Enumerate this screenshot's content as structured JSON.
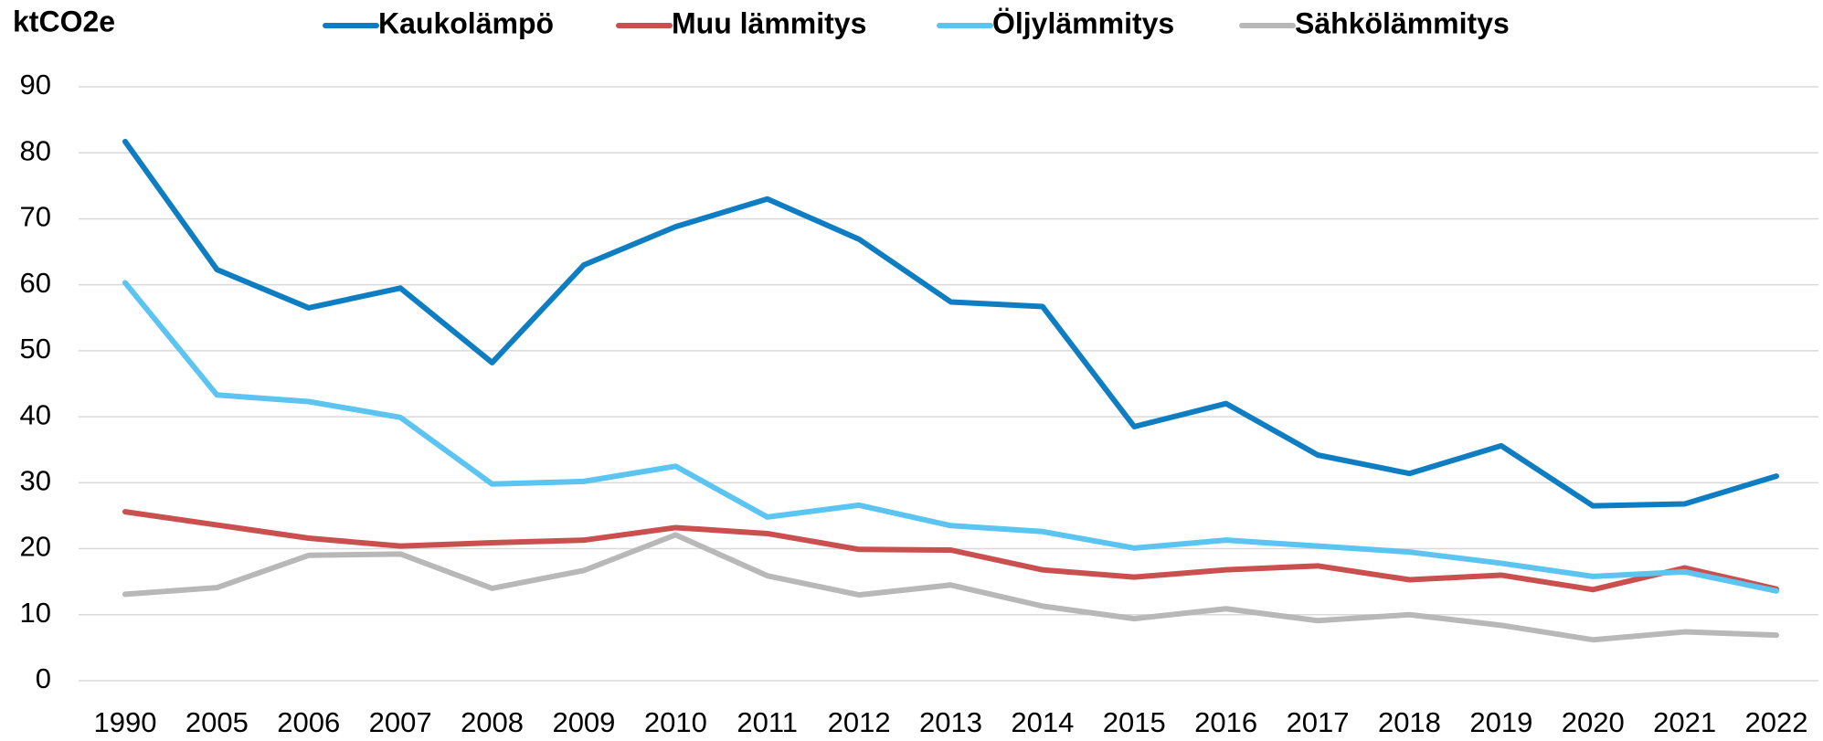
{
  "chart_data": {
    "type": "line",
    "y_label": "ktCO2e",
    "categories": [
      "1990",
      "2005",
      "2006",
      "2007",
      "2008",
      "2009",
      "2010",
      "2011",
      "2012",
      "2013",
      "2014",
      "2015",
      "2016",
      "2017",
      "2018",
      "2019",
      "2020",
      "2021",
      "2022"
    ],
    "series": [
      {
        "name": "Kaukolämpö",
        "color": "#0e7dc2",
        "values": [
          81.7,
          62.3,
          56.5,
          59.5,
          48.2,
          63.0,
          68.8,
          73.0,
          66.9,
          57.4,
          56.7,
          38.5,
          42.0,
          34.2,
          31.4,
          35.6,
          26.5,
          26.8,
          31.0
        ]
      },
      {
        "name": "Muu lämmitys",
        "color": "#c9504e",
        "values": [
          25.6,
          23.6,
          21.6,
          20.4,
          20.9,
          21.3,
          23.2,
          22.3,
          19.9,
          19.8,
          16.8,
          15.7,
          16.8,
          17.4,
          15.3,
          16.0,
          13.8,
          17.1,
          13.9
        ]
      },
      {
        "name": "Öljylämmitys",
        "color": "#5bc4f1",
        "values": [
          60.3,
          43.3,
          42.3,
          39.9,
          29.8,
          30.2,
          32.5,
          24.8,
          26.6,
          23.5,
          22.6,
          20.1,
          21.3,
          20.4,
          19.5,
          17.8,
          15.8,
          16.5,
          13.6
        ]
      },
      {
        "name": "Sähkölämmitys",
        "color": "#b8b8b8",
        "values": [
          13.1,
          14.1,
          19.0,
          19.2,
          14.0,
          16.7,
          22.1,
          15.9,
          13.0,
          14.5,
          11.3,
          9.4,
          10.9,
          9.1,
          10.0,
          8.4,
          6.2,
          7.4,
          6.9
        ]
      }
    ],
    "ylim": [
      0,
      90
    ],
    "yticks": [
      0,
      10,
      20,
      30,
      40,
      50,
      60,
      70,
      80,
      90
    ],
    "grid": true,
    "legend": "top"
  }
}
